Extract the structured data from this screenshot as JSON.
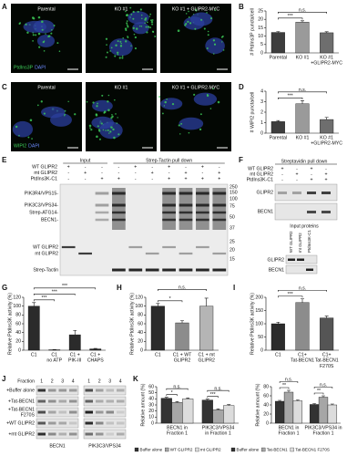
{
  "figure": {
    "letters": [
      "A",
      "B",
      "C",
      "D",
      "E",
      "F",
      "G",
      "H",
      "I",
      "J",
      "K"
    ],
    "a": {
      "images": [
        "Parental",
        "KO #1",
        "KO #1 + GLIPR2-MYC"
      ],
      "stain": [
        "PtdIns3P",
        "DAPI"
      ]
    },
    "c": {
      "images": [
        "Parental",
        "KO #1",
        "KO #1 + GLIPR2-MYC"
      ],
      "stain": [
        "WIPI2",
        "DAPI"
      ]
    },
    "e": {
      "groups": [
        "Input",
        "Strep-Tactin pull down"
      ],
      "rows": [
        "WT GLIPR2",
        "mt GLIPR2",
        "PtdIns3K-C1"
      ],
      "signs": [
        [
          "+",
          "-",
          "-",
          "-",
          "+",
          "-",
          "+",
          "-",
          "+",
          "-"
        ],
        [
          "-",
          "+",
          "-",
          "-",
          "-",
          "+",
          "-",
          "+",
          "-",
          "+"
        ],
        [
          "-",
          "-",
          "+",
          "+",
          "-",
          "-",
          "+",
          "+",
          "+",
          "+"
        ]
      ],
      "bands": [
        "PIK3R4/VPS15-",
        "PIK3C3/VPS34-",
        "Strep-ATG14-",
        "BECN1-",
        "WT GLIPR2",
        "mt GLIPR2",
        "Strep-Tactin"
      ],
      "mw": [
        250,
        150,
        100,
        75,
        50,
        37,
        25,
        20,
        15
      ]
    },
    "f": {
      "title": "Streptavidin pull down",
      "rows": [
        "WT GLIPR2",
        "mt GLIPR2",
        "PtdIns3K-C1"
      ],
      "signs": [
        [
          "+",
          "-",
          "+",
          "-"
        ],
        [
          "-",
          "+",
          "-",
          "+"
        ],
        [
          "-",
          "-",
          "+",
          "+"
        ]
      ],
      "blots": [
        "GLIPR2",
        "BECN1"
      ],
      "input_title": "Input proteins",
      "input_lanes": [
        "WT GLIPR2",
        "mt GLIPR2",
        "PtdIns3K-C1"
      ],
      "input_blots": [
        "GLIPR2",
        "BECN1"
      ]
    },
    "j": {
      "fraction_label": "Fraction",
      "fractions": [
        1,
        2,
        3,
        4
      ],
      "rows": [
        [
          "+Buffer alone"
        ],
        [
          "+Tat-BECN1"
        ],
        [
          "+Tat-BECN1",
          "F270S"
        ],
        [
          "+WT GLIPR2"
        ],
        [
          "+mt GLIPR2"
        ]
      ],
      "blots": [
        "BECN1",
        "PIK3C3/VPS34"
      ]
    }
  },
  "chart_data": [
    {
      "type": "bar",
      "y_title": "# PtdIns3P puncta/cell",
      "categories": [
        [
          "Parental"
        ],
        [
          "KO #1"
        ],
        [
          "KO #1",
          "+GLIPR2-MYC"
        ]
      ],
      "values": [
        12.2,
        18.3,
        12
      ],
      "errors": [
        0.5,
        0.8,
        0.6
      ],
      "colors": [
        "#3d3d3d",
        "#9a9a9a",
        "#6e6e6e"
      ],
      "ylim": [
        0,
        25
      ],
      "yticks": [
        0,
        5,
        10,
        15,
        20,
        25
      ],
      "significance": [
        {
          "text": "***",
          "pair": [
            0,
            1
          ]
        },
        {
          "text": "n.s.",
          "pair": [
            0,
            2
          ]
        }
      ]
    },
    {
      "type": "bar",
      "y_title": "# WIPI2 puncta/cell",
      "categories": [
        [
          "Parental"
        ],
        [
          "KO #1"
        ],
        [
          "KO #1",
          "+GLIPR2-MYC"
        ]
      ],
      "values": [
        1.1,
        2.8,
        1.3
      ],
      "errors": [
        0.1,
        0.3,
        0.2
      ],
      "colors": [
        "#3d3d3d",
        "#9a9a9a",
        "#6e6e6e"
      ],
      "ylim": [
        0,
        4
      ],
      "yticks": [
        0,
        1,
        2,
        3,
        4
      ],
      "significance": [
        {
          "text": "***",
          "pair": [
            0,
            1
          ]
        },
        {
          "text": "n.s.",
          "pair": [
            0,
            2
          ]
        }
      ]
    },
    {
      "type": "bar",
      "y_title": "Relative PtdIns3K activity (%)",
      "categories": [
        [
          "C1"
        ],
        [
          "C1",
          "no ATP"
        ],
        [
          "C1 +",
          "PIK-III"
        ],
        [
          "C1 +",
          "CHAPS"
        ]
      ],
      "values": [
        100,
        1,
        35,
        3
      ],
      "errors": [
        8,
        0.5,
        10,
        1
      ],
      "colors": [
        "#2b2b2b",
        "#2b2b2b",
        "#2b2b2b",
        "#2b2b2b"
      ],
      "ylim": [
        0,
        120
      ],
      "yticks": [
        0,
        20,
        40,
        60,
        80,
        100,
        120
      ],
      "significance": [
        {
          "text": "***",
          "pair": [
            0,
            1
          ]
        },
        {
          "text": "***",
          "pair": [
            0,
            2
          ]
        },
        {
          "text": "***",
          "pair": [
            0,
            3
          ]
        }
      ]
    },
    {
      "type": "bar",
      "y_title": "Relative PtdIns3K activity (%)",
      "categories": [
        [
          "C1"
        ],
        [
          "C1 + WT",
          "GLIPR2"
        ],
        [
          "C1 + mt",
          "GLIPR2"
        ]
      ],
      "values": [
        100,
        62,
        100
      ],
      "errors": [
        6,
        5,
        18
      ],
      "colors": [
        "#2b2b2b",
        "#8c8c8c",
        "#b5b5b5"
      ],
      "ylim": [
        0,
        120
      ],
      "yticks": [
        0,
        20,
        40,
        60,
        80,
        100,
        120
      ],
      "significance": [
        {
          "text": "*",
          "pair": [
            0,
            1
          ]
        },
        {
          "text": "n.s.",
          "pair": [
            0,
            2
          ]
        }
      ]
    },
    {
      "type": "bar",
      "y_title": "Relative PtdIns3K activity (%)",
      "categories": [
        [
          "C1"
        ],
        [
          "C1+",
          "Tat-BECN1"
        ],
        [
          "C1+",
          "Tat-BECN1",
          "F270S"
        ]
      ],
      "values": [
        100,
        180,
        122
      ],
      "errors": [
        6,
        14,
        7
      ],
      "colors": [
        "#2b2b2b",
        "#8c8c8c",
        "#555555"
      ],
      "ylim": [
        0,
        200
      ],
      "yticks": [
        0,
        50,
        100,
        150,
        200
      ],
      "significance": [
        {
          "text": "***",
          "pair": [
            0,
            1
          ]
        },
        {
          "text": "n.s.",
          "pair": [
            0,
            2
          ]
        }
      ]
    },
    {
      "type": "grouped_bar",
      "y_title": "Relative amount (%)",
      "categories": [
        [
          "BECN1 in",
          "Fraction 1"
        ],
        [
          "PIK3C3/VPS34",
          "in Fraction 1"
        ]
      ],
      "series": [
        {
          "name": "Buffer alone",
          "color": "#333333",
          "values": [
            41,
            38
          ],
          "errors": [
            1.5,
            1.5
          ]
        },
        {
          "name": "WT GLIPR2",
          "color": "#a6a6a6",
          "values": [
            34,
            22
          ],
          "errors": [
            1.5,
            1.5
          ]
        },
        {
          "name": "mt GLIPR2",
          "color": "#dcdcdc",
          "values": [
            40,
            29
          ],
          "errors": [
            1.5,
            1.5
          ]
        }
      ],
      "ylim": [
        0,
        60
      ],
      "yticks": [
        0,
        10,
        20,
        30,
        40,
        50,
        60
      ],
      "significance": [
        {
          "text": "*",
          "group": 0,
          "pair": [
            0,
            1
          ]
        },
        {
          "text": "n.s.",
          "group": 0,
          "pair": [
            0,
            2
          ]
        },
        {
          "text": "***",
          "group": 1,
          "pair": [
            0,
            1
          ]
        },
        {
          "text": "n.s.",
          "group": 1,
          "pair": [
            0,
            2
          ]
        }
      ]
    },
    {
      "type": "grouped_bar",
      "y_title": "Relative amount (%)",
      "categories": [
        [
          "BECN1 in",
          "Fraction 1"
        ],
        [
          "PIK3C3/VPS34 in",
          "Fraction 1"
        ]
      ],
      "series": [
        {
          "name": "Buffer alone",
          "color": "#333333",
          "values": [
            48,
            41
          ],
          "errors": [
            2,
            2
          ]
        },
        {
          "name": "Tat-BECN1",
          "color": "#a6a6a6",
          "values": [
            68,
            57
          ],
          "errors": [
            4,
            3
          ]
        },
        {
          "name": "Tat-BECN1 F270S",
          "color": "#dcdcdc",
          "values": [
            49,
            40
          ],
          "errors": [
            2,
            2
          ]
        }
      ],
      "ylim": [
        0,
        80
      ],
      "yticks": [
        0,
        20,
        40,
        60,
        80
      ],
      "significance": [
        {
          "text": "**",
          "group": 0,
          "pair": [
            0,
            1
          ]
        },
        {
          "text": "n.s.",
          "group": 0,
          "pair": [
            0,
            2
          ]
        },
        {
          "text": "**",
          "group": 1,
          "pair": [
            0,
            1
          ]
        },
        {
          "text": "n.s.",
          "group": 1,
          "pair": [
            0,
            2
          ]
        }
      ]
    }
  ]
}
